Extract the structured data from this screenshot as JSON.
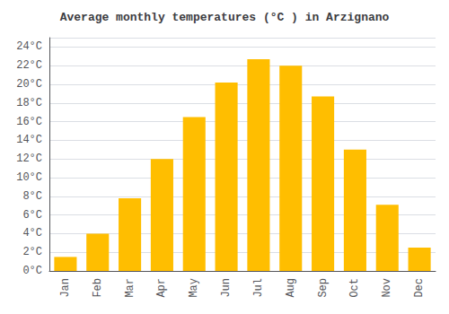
{
  "chart_data": {
    "type": "bar",
    "title": "Average monthly temperatures (°C ) in Arzignano",
    "categories": [
      "Jan",
      "Feb",
      "Mar",
      "Apr",
      "May",
      "Jun",
      "Jul",
      "Aug",
      "Sep",
      "Oct",
      "Nov",
      "Dec"
    ],
    "values": [
      1.5,
      4.0,
      7.8,
      12.0,
      16.5,
      20.2,
      22.7,
      22.0,
      18.7,
      13.0,
      7.1,
      2.5
    ],
    "color": "#FFBE00",
    "ylim": [
      0,
      25.0
    ],
    "yticks": [
      {
        "value": 0,
        "label": "0°C"
      },
      {
        "value": 2,
        "label": "2°C"
      },
      {
        "value": 4,
        "label": "4°C"
      },
      {
        "value": 6,
        "label": "6°C"
      },
      {
        "value": 8,
        "label": "8°C"
      },
      {
        "value": 10,
        "label": "10°C"
      },
      {
        "value": 12,
        "label": "12°C"
      },
      {
        "value": 14,
        "label": "14°C"
      },
      {
        "value": 16,
        "label": "16°C"
      },
      {
        "value": 18,
        "label": "18°C"
      },
      {
        "value": 20,
        "label": "20°C"
      },
      {
        "value": 22,
        "label": "22°C"
      },
      {
        "value": 24,
        "label": "24°C"
      }
    ],
    "grid": true
  }
}
